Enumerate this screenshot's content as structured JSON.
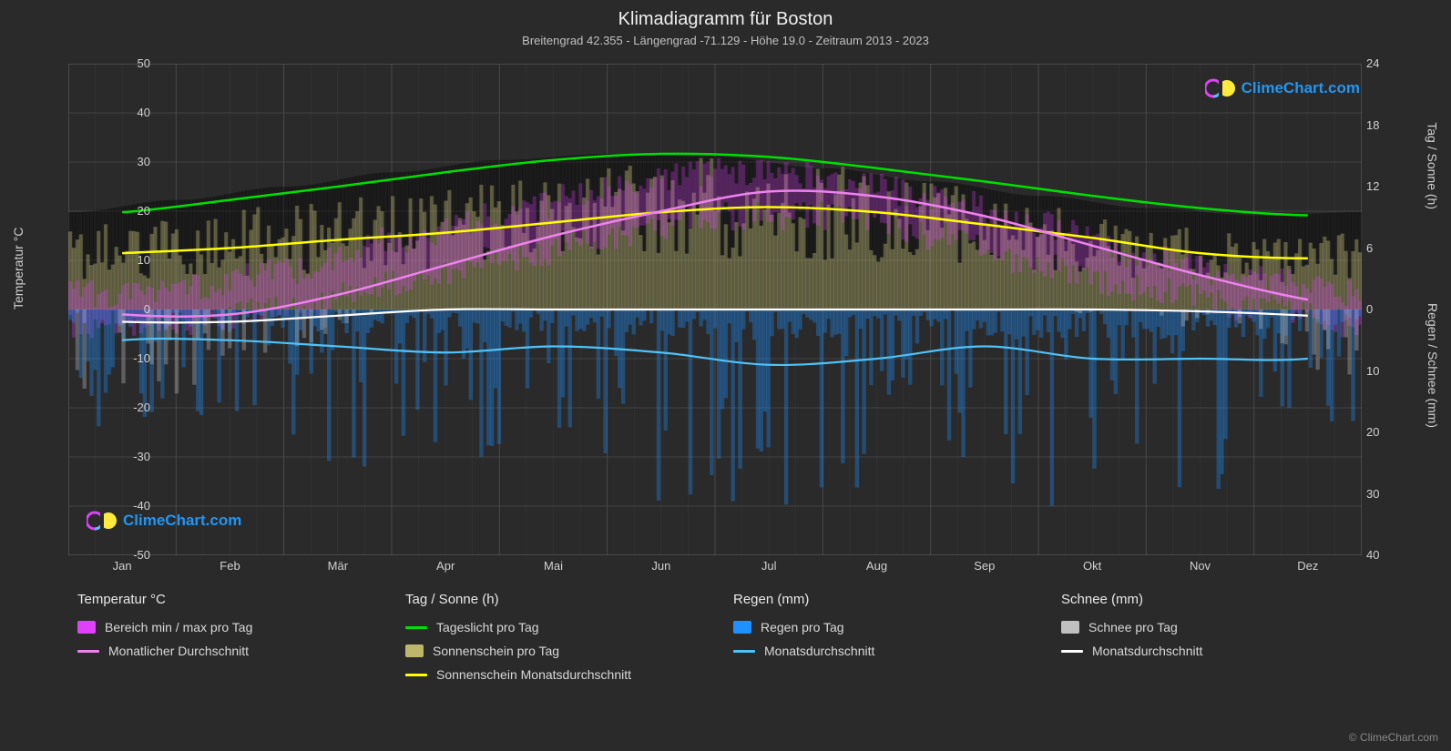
{
  "title": "Klimadiagramm für Boston",
  "subtitle": "Breitengrad 42.355 - Längengrad -71.129 - Höhe 19.0 - Zeitraum 2013 - 2023",
  "axis_labels": {
    "left": "Temperatur °C",
    "right_top": "Tag / Sonne (h)",
    "right_bottom": "Regen / Schnee (mm)"
  },
  "watermark": "ClimeChart.com",
  "watermark_color": "#2196f3",
  "copyright": "© ClimeChart.com",
  "chart": {
    "background_color": "#2a2a2a",
    "grid_color": "#555555",
    "border_color": "#666666",
    "months": [
      "Jan",
      "Feb",
      "Mär",
      "Apr",
      "Mai",
      "Jun",
      "Jul",
      "Aug",
      "Sep",
      "Okt",
      "Nov",
      "Dez"
    ],
    "y_left": {
      "min": -50,
      "max": 50,
      "ticks": [
        -50,
        -40,
        -30,
        -20,
        -10,
        0,
        10,
        20,
        30,
        40,
        50
      ]
    },
    "y_right_top": {
      "min": 0,
      "max": 24,
      "ticks": [
        0,
        6,
        12,
        18,
        24
      ]
    },
    "y_right_bottom": {
      "min": 0,
      "max": 40,
      "ticks": [
        0,
        10,
        20,
        30,
        40
      ]
    },
    "series": {
      "temp_range_color": "#e040fb",
      "temp_avg_color": "#ee82ee",
      "daylight_color": "#00e000",
      "sunshine_bar_color": "#bdb76b",
      "sunshine_avg_color": "#ffff00",
      "rain_bar_color": "#1e90ff",
      "rain_avg_color": "#4fc3f7",
      "snow_bar_color": "#c0c0c0",
      "snow_avg_color": "#ffffff",
      "temp_min": [
        -3,
        -3,
        0,
        5,
        10,
        15,
        19,
        19,
        15,
        9,
        4,
        0
      ],
      "temp_max": [
        3,
        4,
        8,
        14,
        19,
        25,
        28,
        27,
        23,
        17,
        11,
        6
      ],
      "temp_avg": [
        -1,
        -1,
        3,
        9,
        15,
        20,
        24,
        23,
        19,
        13,
        7,
        2
      ],
      "daylight_h": [
        9.5,
        10.7,
        12.0,
        13.4,
        14.6,
        15.2,
        14.9,
        13.8,
        12.5,
        11.1,
        9.9,
        9.2
      ],
      "sunshine_h": [
        5.5,
        6.0,
        6.8,
        7.5,
        8.5,
        9.5,
        10.0,
        9.5,
        8.3,
        7.0,
        5.5,
        5.0
      ],
      "rain_mm_month": [
        5,
        5,
        6,
        7,
        6,
        7,
        9,
        8,
        6,
        8,
        8,
        8
      ],
      "snow_mm_month": [
        2,
        2,
        1,
        0,
        0,
        0,
        0,
        0,
        0,
        0,
        0.3,
        1
      ],
      "daily_bar_density": 365,
      "bar_opacity": 0.35
    }
  },
  "legend": {
    "group1_title": "Temperatur °C",
    "g1_item1": "Bereich min / max pro Tag",
    "g1_item2": "Monatlicher Durchschnitt",
    "group2_title": "Tag / Sonne (h)",
    "g2_item1": "Tageslicht pro Tag",
    "g2_item2": "Sonnenschein pro Tag",
    "g2_item3": "Sonnenschein Monatsdurchschnitt",
    "group3_title": "Regen (mm)",
    "g3_item1": "Regen pro Tag",
    "g3_item2": "Monatsdurchschnitt",
    "group4_title": "Schnee (mm)",
    "g4_item1": "Schnee pro Tag",
    "g4_item2": "Monatsdurchschnitt"
  }
}
